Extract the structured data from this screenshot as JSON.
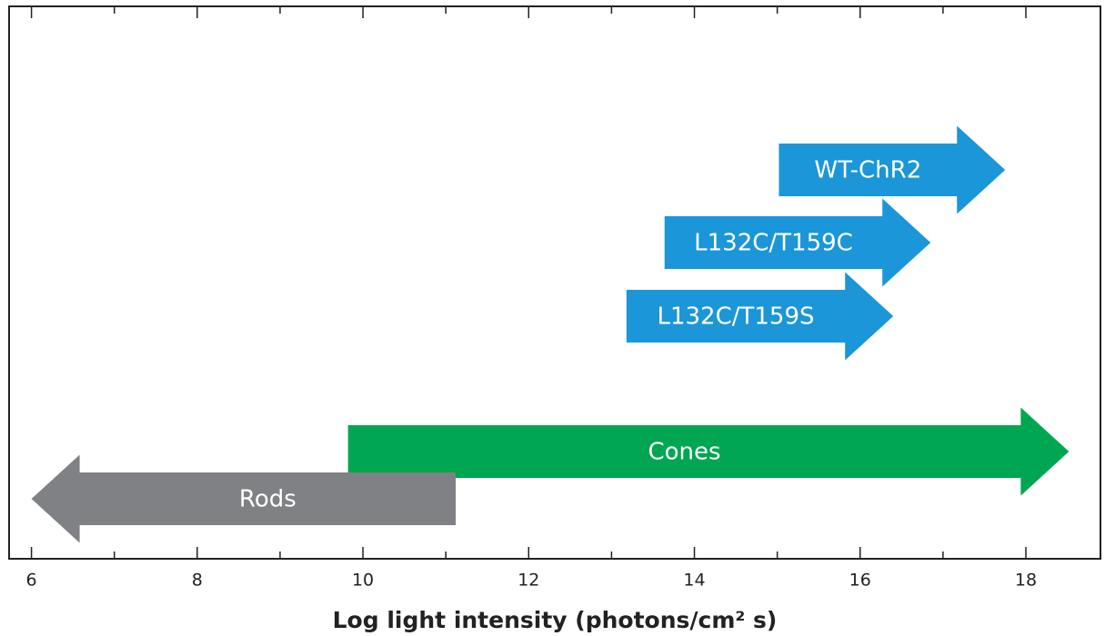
{
  "chart_data": {
    "type": "range-arrow",
    "xlabel": "Log light intensity (photons/cm² s)",
    "xlim": [
      5.73,
      18.9
    ],
    "xticks": [
      6,
      8,
      10,
      12,
      14,
      16,
      18
    ],
    "xminor_ticks": [
      7,
      9,
      11,
      13,
      15,
      17
    ],
    "series": [
      {
        "name": "WT-ChR2",
        "color": "#1b96d9",
        "direction": "right",
        "values": [
          15.02,
          17.75
        ]
      },
      {
        "name": "L132C/T159C",
        "color": "#1b96d9",
        "direction": "right",
        "values": [
          13.64,
          16.85
        ]
      },
      {
        "name": "L132C/T159S",
        "color": "#1b96d9",
        "direction": "right",
        "values": [
          13.18,
          16.4
        ]
      },
      {
        "name": "Cones",
        "color": "#00a651",
        "direction": "right",
        "values": [
          9.82,
          18.52
        ]
      },
      {
        "name": "Rods",
        "color": "#808184",
        "direction": "left",
        "values": [
          6.0,
          11.12
        ]
      }
    ]
  }
}
